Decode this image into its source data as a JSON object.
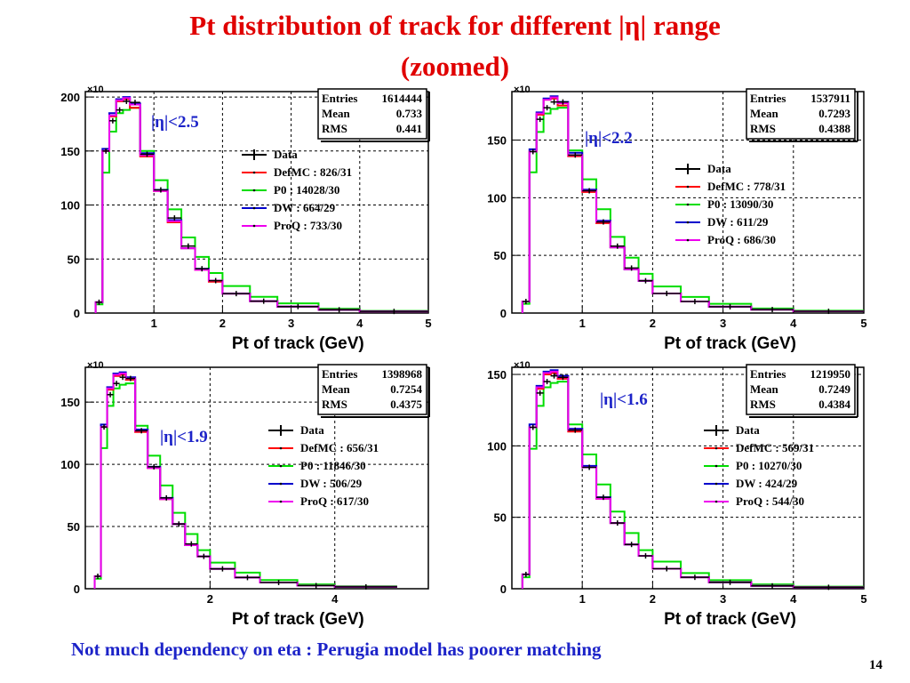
{
  "slide": {
    "title_line1": "Pt distribution of track for different |η| range",
    "title_line2": "(zoomed)",
    "footer": "Not much dependency on eta : Perugia model has poorer matching",
    "page_number": "14"
  },
  "colors": {
    "title": "#e00000",
    "footer": "#1c23c8",
    "Data": "#000000",
    "DefMC": "#ff0000",
    "P0": "#00dd00",
    "DW": "#0000cc",
    "ProQ": "#ee00ee"
  },
  "chart_data": [
    {
      "type": "line",
      "eta_label": "|η|<2.5",
      "xlabel": "Pt of track (GeV)",
      "exponent_label": "×10",
      "xlim": [
        0,
        5
      ],
      "ylim": [
        0,
        205
      ],
      "xticks": [
        1,
        2,
        3,
        4,
        5
      ],
      "xtick_labels": [
        "1",
        "2",
        "3",
        "4",
        "5"
      ],
      "yticks": [
        0,
        50,
        100,
        150,
        200
      ],
      "ytick_labels": [
        "0",
        "50",
        "100",
        "150",
        "200"
      ],
      "stats": {
        "Entries": "1614444",
        "Mean": "0.733",
        "RMS": "0.441"
      },
      "legend": [
        "Data",
        "DefMC : 826/31",
        "P0 : 14028/30",
        "DW : 664/29",
        "ProQ : 733/30"
      ],
      "bin_edges": [
        0.15,
        0.25,
        0.35,
        0.45,
        0.55,
        0.65,
        0.8,
        1.0,
        1.2,
        1.4,
        1.6,
        1.8,
        2.0,
        2.4,
        2.8,
        3.4,
        4.0,
        5.0
      ],
      "series": [
        {
          "name": "Data",
          "values": [
            10,
            150,
            178,
            188,
            196,
            195,
            147,
            114,
            88,
            62,
            41,
            30,
            18,
            11,
            6,
            3,
            1.5
          ]
        },
        {
          "name": "DefMC",
          "values": [
            10,
            150,
            182,
            196,
            198,
            190,
            145,
            113,
            84,
            60,
            40,
            29,
            18,
            11,
            6,
            3,
            1.5
          ]
        },
        {
          "name": "P0",
          "values": [
            8,
            130,
            168,
            185,
            188,
            190,
            150,
            123,
            96,
            70,
            52,
            37,
            25,
            15,
            9,
            4,
            2
          ]
        },
        {
          "name": "DW",
          "values": [
            10,
            152,
            185,
            198,
            200,
            194,
            148,
            114,
            86,
            60,
            41,
            30,
            18,
            11,
            6,
            3,
            1.5
          ]
        },
        {
          "name": "ProQ",
          "values": [
            10,
            150,
            183,
            197,
            199,
            193,
            146,
            113,
            85,
            60,
            40,
            30,
            18,
            11,
            6,
            3,
            1.5
          ]
        }
      ]
    },
    {
      "type": "line",
      "eta_label": "|η|<2.2",
      "xlabel": "Pt of track (GeV)",
      "exponent_label": "×10",
      "xlim": [
        0,
        5
      ],
      "ylim": [
        0,
        192
      ],
      "xticks": [
        1,
        2,
        3,
        4,
        5
      ],
      "xtick_labels": [
        "1",
        "2",
        "3",
        "4",
        "5"
      ],
      "yticks": [
        0,
        50,
        100,
        150
      ],
      "ytick_labels": [
        "0",
        "50",
        "100",
        "150"
      ],
      "stats": {
        "Entries": "1537911",
        "Mean": "0.7293",
        "RMS": "0.4388"
      },
      "legend": [
        "Data",
        "DefMC : 778/31",
        "P0 : 13090/30",
        "DW : 611/29",
        "ProQ : 686/30"
      ],
      "bin_edges": [
        0.15,
        0.25,
        0.35,
        0.45,
        0.55,
        0.65,
        0.8,
        1.0,
        1.2,
        1.4,
        1.6,
        1.8,
        2.0,
        2.4,
        2.8,
        3.4,
        4.0,
        5.0
      ],
      "series": [
        {
          "name": "Data",
          "values": [
            10,
            140,
            168,
            178,
            183,
            183,
            137,
            106,
            79,
            58,
            39,
            28,
            17,
            10,
            5.5,
            3,
            1.5
          ]
        },
        {
          "name": "DefMC",
          "values": [
            10,
            140,
            172,
            185,
            186,
            180,
            136,
            105,
            78,
            57,
            38,
            28,
            17,
            10,
            5.5,
            3,
            1.5
          ]
        },
        {
          "name": "P0",
          "values": [
            8,
            122,
            157,
            173,
            177,
            178,
            141,
            116,
            90,
            66,
            48,
            34,
            23,
            14,
            8,
            4,
            2
          ]
        },
        {
          "name": "DW",
          "values": [
            10,
            142,
            174,
            186,
            188,
            183,
            139,
            107,
            80,
            57,
            38,
            28,
            17,
            10,
            5.5,
            3,
            1.5
          ]
        },
        {
          "name": "ProQ",
          "values": [
            10,
            140,
            173,
            185,
            187,
            182,
            137,
            106,
            79,
            57,
            38,
            28,
            17,
            10,
            5.5,
            3,
            1.5
          ]
        }
      ]
    },
    {
      "type": "line",
      "eta_label": "|η|<1.9",
      "xlabel": "Pt of track (GeV)",
      "exponent_label": "×10",
      "xlim": [
        0,
        5.5
      ],
      "ylim": [
        0,
        178
      ],
      "xticks": [
        2,
        4
      ],
      "xtick_labels": [
        "2",
        "4"
      ],
      "yticks": [
        0,
        50,
        100,
        150
      ],
      "ytick_labels": [
        "0",
        "50",
        "100",
        "150"
      ],
      "stats": {
        "Entries": "1398968",
        "Mean": "0.7254",
        "RMS": "0.4375"
      },
      "legend": [
        "Data",
        "DefMC : 656/31",
        "P0 : 11846/30",
        "DW : 506/29",
        "ProQ : 617/30"
      ],
      "bin_edges": [
        0.15,
        0.25,
        0.35,
        0.45,
        0.55,
        0.65,
        0.8,
        1.0,
        1.2,
        1.4,
        1.6,
        1.8,
        2.0,
        2.4,
        2.8,
        3.4,
        4.0,
        5.0
      ],
      "series": [
        {
          "name": "Data",
          "values": [
            10,
            130,
            156,
            165,
            170,
            169,
            127,
            98,
            73,
            52,
            36,
            26,
            16,
            9,
            5,
            2.5,
            1.5
          ]
        },
        {
          "name": "DefMC",
          "values": [
            10,
            130,
            160,
            171,
            172,
            168,
            126,
            97,
            72,
            52,
            35,
            26,
            16,
            9,
            5,
            2.5,
            1.5
          ]
        },
        {
          "name": "P0",
          "values": [
            8,
            113,
            147,
            161,
            164,
            165,
            131,
            107,
            83,
            61,
            44,
            31,
            21,
            13,
            7,
            3.5,
            2
          ]
        },
        {
          "name": "DW",
          "values": [
            10,
            132,
            162,
            173,
            174,
            170,
            128,
            98,
            73,
            52,
            35,
            26,
            16,
            9,
            5,
            2.5,
            1.5
          ]
        },
        {
          "name": "ProQ",
          "values": [
            10,
            130,
            161,
            172,
            173,
            169,
            127,
            97,
            72,
            52,
            35,
            26,
            16,
            9,
            5,
            2.5,
            1.5
          ]
        }
      ]
    },
    {
      "type": "line",
      "eta_label": "|η|<1.6",
      "xlabel": "Pt of track (GeV)",
      "exponent_label": "×10",
      "xlim": [
        0,
        5
      ],
      "ylim": [
        0,
        155
      ],
      "xticks": [
        1,
        2,
        3,
        4,
        5
      ],
      "xtick_labels": [
        "1",
        "2",
        "3",
        "4",
        "5"
      ],
      "yticks": [
        0,
        50,
        100,
        150
      ],
      "ytick_labels": [
        "0",
        "50",
        "100",
        "150"
      ],
      "stats": {
        "Entries": "1219950",
        "Mean": "0.7249",
        "RMS": "0.4384"
      },
      "legend": [
        "Data",
        "DefMC : 569/31",
        "P0 : 10270/30",
        "DW : 424/29",
        "ProQ : 544/30"
      ],
      "bin_edges": [
        0.15,
        0.25,
        0.35,
        0.45,
        0.55,
        0.65,
        0.8,
        1.0,
        1.2,
        1.4,
        1.6,
        1.8,
        2.0,
        2.4,
        2.8,
        3.4,
        4.0,
        5.0
      ],
      "series": [
        {
          "name": "Data",
          "values": [
            10,
            113,
            137,
            145,
            149,
            148,
            111,
            85,
            64,
            46,
            31,
            23,
            14,
            8,
            4.5,
            2,
            1
          ]
        },
        {
          "name": "DefMC",
          "values": [
            10,
            113,
            140,
            150,
            151,
            147,
            110,
            85,
            63,
            46,
            31,
            23,
            14,
            8,
            4.5,
            2,
            1
          ]
        },
        {
          "name": "P0",
          "values": [
            8,
            98,
            128,
            141,
            144,
            145,
            115,
            94,
            73,
            54,
            39,
            27,
            19,
            11,
            6,
            3,
            1.5
          ]
        },
        {
          "name": "DW",
          "values": [
            10,
            115,
            142,
            152,
            153,
            149,
            112,
            86,
            64,
            46,
            31,
            23,
            14,
            8,
            4.5,
            2,
            1
          ]
        },
        {
          "name": "ProQ",
          "values": [
            10,
            113,
            141,
            151,
            152,
            148,
            111,
            85,
            63,
            46,
            31,
            23,
            14,
            8,
            4.5,
            2,
            1
          ]
        }
      ]
    }
  ]
}
